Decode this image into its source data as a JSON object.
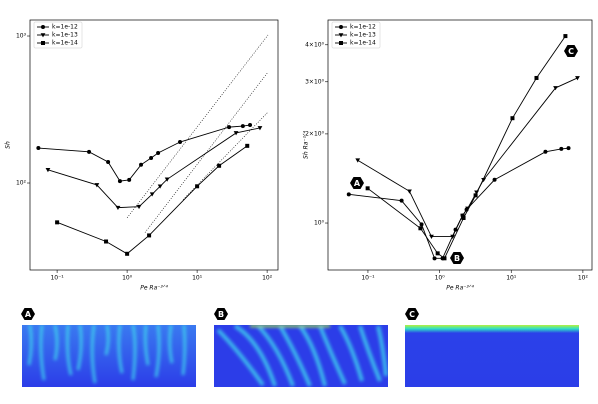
{
  "chart_data": [
    {
      "type": "line",
      "xlabel": "Pe Ra⁻³ᐟ⁴",
      "ylabel": "Sh",
      "xlog": true,
      "ylog": true,
      "xlim": [
        0.041,
        143
      ],
      "ylim": [
        25.6,
        1285
      ],
      "xticks": [
        {
          "value": 0.1,
          "label": "10⁻¹"
        },
        {
          "value": 1,
          "label": "10⁰"
        },
        {
          "value": 10,
          "label": "10¹"
        },
        {
          "value": 100,
          "label": "10²"
        }
      ],
      "yticks": [
        {
          "value": 100,
          "label": "10²"
        },
        {
          "value": 1000,
          "label": "10³"
        }
      ],
      "legend": "upper left",
      "series": [
        {
          "name": "k=1e-12",
          "color": "#000000",
          "marker": "o",
          "x": [
            0.054,
            0.286,
            0.535,
            0.79,
            1.07,
            1.58,
            2.2,
            2.77,
            5.7,
            28.6,
            45,
            57
          ],
          "values": [
            173,
            163,
            139,
            103,
            105,
            133,
            148,
            160,
            190,
            240,
            244,
            248
          ]
        },
        {
          "name": "k=1e-13",
          "color": "#000000",
          "marker": "v",
          "x": [
            0.074,
            0.37,
            0.74,
            1.48,
            2.28,
            2.96,
            3.73,
            36,
            79
          ],
          "values": [
            123,
            97,
            68,
            69,
            84,
            95,
            106,
            219,
            237
          ]
        },
        {
          "name": "k=1e-14",
          "color": "#000000",
          "marker": "s",
          "x": [
            0.1,
            0.5,
            1,
            2.06,
            10,
            20.6,
            52
          ],
          "values": [
            54,
            40,
            33,
            44,
            95,
            131,
            179
          ]
        }
      ],
      "reference_lines": [
        {
          "x": [
            1,
            103
          ],
          "y": [
            58,
            1016
          ]
        },
        {
          "x": [
            1.8,
            103
          ],
          "y": [
            46,
            569
          ]
        },
        {
          "x": [
            6.3,
            103
          ],
          "y": [
            77,
            304
          ]
        }
      ]
    },
    {
      "type": "line",
      "xlabel": "Pe Ra⁻³ᐟ⁴",
      "ylabel": "Sh Ra⁻¹ᐟ⁴",
      "xlog": true,
      "ylog": true,
      "xlim": [
        0.0277,
        134
      ],
      "ylim": [
        0.694,
        4.85
      ],
      "xticks": [
        {
          "value": 0.1,
          "label": "10⁻¹"
        },
        {
          "value": 1,
          "label": "10⁰"
        },
        {
          "value": 10,
          "label": "10¹"
        },
        {
          "value": 100,
          "label": "10²"
        }
      ],
      "yticks": [
        {
          "value": 1,
          "label": "10⁰"
        },
        {
          "value": 2,
          "label": "2×10⁰"
        },
        {
          "value": 3,
          "label": "3×10⁰"
        },
        {
          "value": 4,
          "label": "4×10⁰"
        }
      ],
      "legend": "upper left",
      "series": [
        {
          "name": "k=1e-12",
          "color": "#000000",
          "marker": "o",
          "x": [
            0.054,
            0.295,
            0.56,
            0.85,
            1.1,
            1.67,
            2.09,
            2.38,
            5.85,
            30,
            50,
            63
          ],
          "values": [
            1.25,
            1.19,
            0.99,
            0.76,
            0.76,
            0.95,
            1.06,
            1.11,
            1.4,
            1.74,
            1.78,
            1.79
          ]
        },
        {
          "name": "k=1e-13",
          "color": "#000000",
          "marker": "v",
          "x": [
            0.072,
            0.38,
            0.77,
            1.52,
            2.09,
            2.46,
            3.28,
            4.11,
            41.5,
            84
          ],
          "values": [
            1.63,
            1.28,
            0.9,
            0.9,
            1.06,
            1.12,
            1.27,
            1.4,
            2.86,
            3.09
          ]
        },
        {
          "name": "k=1e-14",
          "color": "#000000",
          "marker": "s",
          "x": [
            0.099,
            0.54,
            0.94,
            1.17,
            2.16,
            3.18,
            10.4,
            22.5,
            57
          ],
          "values": [
            1.31,
            0.96,
            0.79,
            0.76,
            1.04,
            1.24,
            2.26,
            3.09,
            4.28
          ]
        }
      ],
      "annotations": [
        "A",
        "B",
        "C"
      ]
    }
  ],
  "panels": [
    "A",
    "B",
    "C"
  ]
}
